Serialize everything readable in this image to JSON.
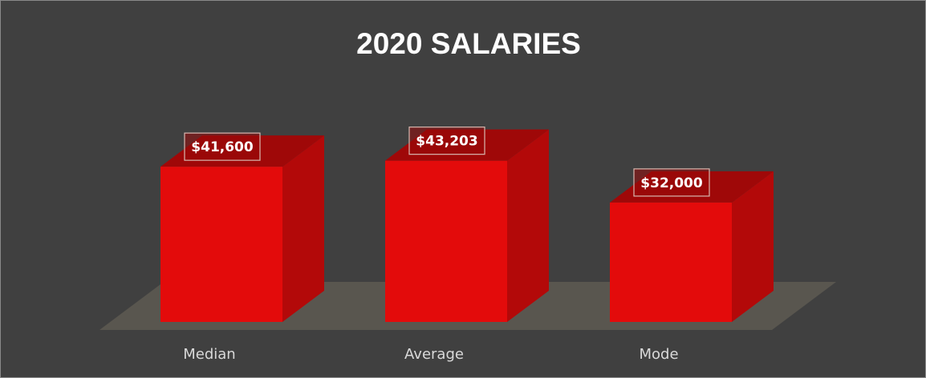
{
  "chart_data": {
    "type": "bar3d",
    "title": "2020 SALARIES",
    "categories": [
      "Median",
      "Average",
      "Mode"
    ],
    "values": [
      41600,
      43203,
      32000
    ],
    "value_labels": [
      "$41,600",
      "$43,203",
      "$32,000"
    ],
    "color": "#e30b0b",
    "ylim": [
      0,
      50000
    ]
  }
}
